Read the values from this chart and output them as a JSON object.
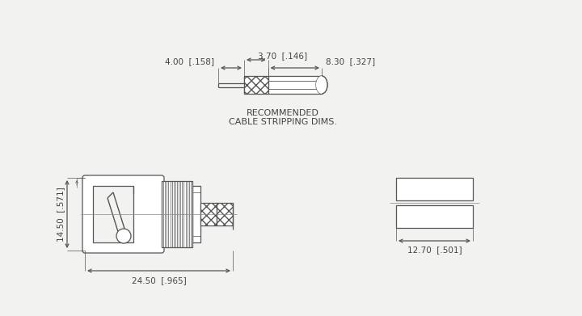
{
  "bg_color": "#f2f2f0",
  "line_color": "#555555",
  "text_color": "#444444",
  "title_line1": "RECOMMENDED",
  "title_line2": "CABLE STRIPPING DIMS.",
  "dim1_label": "3.70  [.146]",
  "dim2_label": "4.00  [.158]",
  "dim3_label": "8.30  [.327]",
  "dim4_label": "14.50  [.571]",
  "dim5_label": "24.50  [.965]",
  "dim6_label": "12.70  [.501]"
}
